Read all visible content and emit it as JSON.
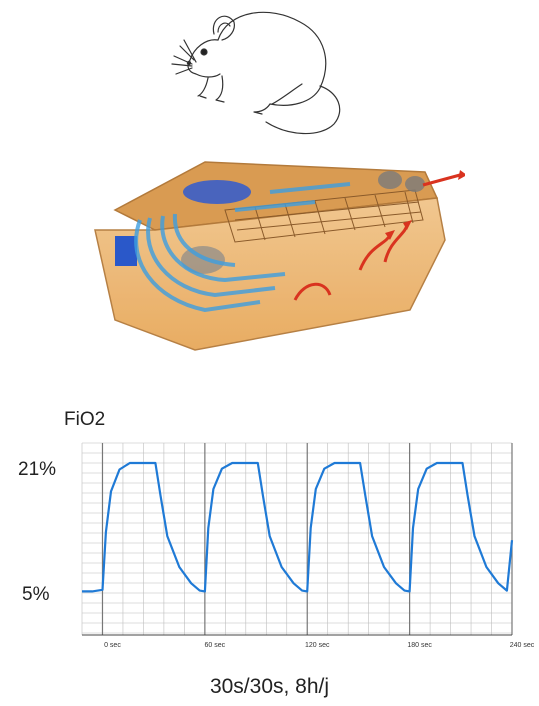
{
  "figure": {
    "caption": "30s/30s, 8h/j"
  },
  "colors": {
    "signal": "#1f7ad6",
    "airflow_in": "#3e9ee0",
    "airflow_out": "#d9331f",
    "cage_tint": "#e8a85a",
    "grid": "#bdbdbd"
  },
  "chart_data": {
    "type": "line",
    "title": "FiO2",
    "y_tick_labels": [
      "21%",
      "5%"
    ],
    "ylim": [
      5,
      21
    ],
    "x_tick_labels": [
      "0 sec",
      "60 sec",
      "120 sec",
      "180 sec",
      "240 sec"
    ],
    "xlim": [
      -12,
      240
    ],
    "grid": true,
    "series": [
      {
        "x": [
          -12,
          -6,
          0,
          2,
          5,
          10,
          16,
          20,
          31,
          34,
          38,
          45,
          52,
          57,
          60,
          62,
          65,
          70,
          76,
          80,
          91,
          94,
          98,
          105,
          112,
          117,
          120,
          122,
          125,
          130,
          136,
          140,
          151,
          154,
          158,
          165,
          172,
          177,
          180,
          182,
          185,
          190,
          196,
          200,
          211,
          214,
          218,
          225,
          232,
          237,
          240
        ],
        "y": [
          5.2,
          5.2,
          5.4,
          12.5,
          17.5,
          20.2,
          21,
          21,
          21,
          17,
          12,
          8.2,
          6.2,
          5.3,
          5.2,
          13,
          17.8,
          20.3,
          21,
          21,
          21,
          17,
          12,
          8.2,
          6.2,
          5.3,
          5.2,
          13,
          17.8,
          20.3,
          21,
          21,
          21,
          17,
          12,
          8.2,
          6.2,
          5.3,
          5.2,
          13,
          17.8,
          20.3,
          21,
          21,
          21,
          17,
          12,
          8.2,
          6.2,
          5.3,
          11.5
        ]
      }
    ]
  }
}
